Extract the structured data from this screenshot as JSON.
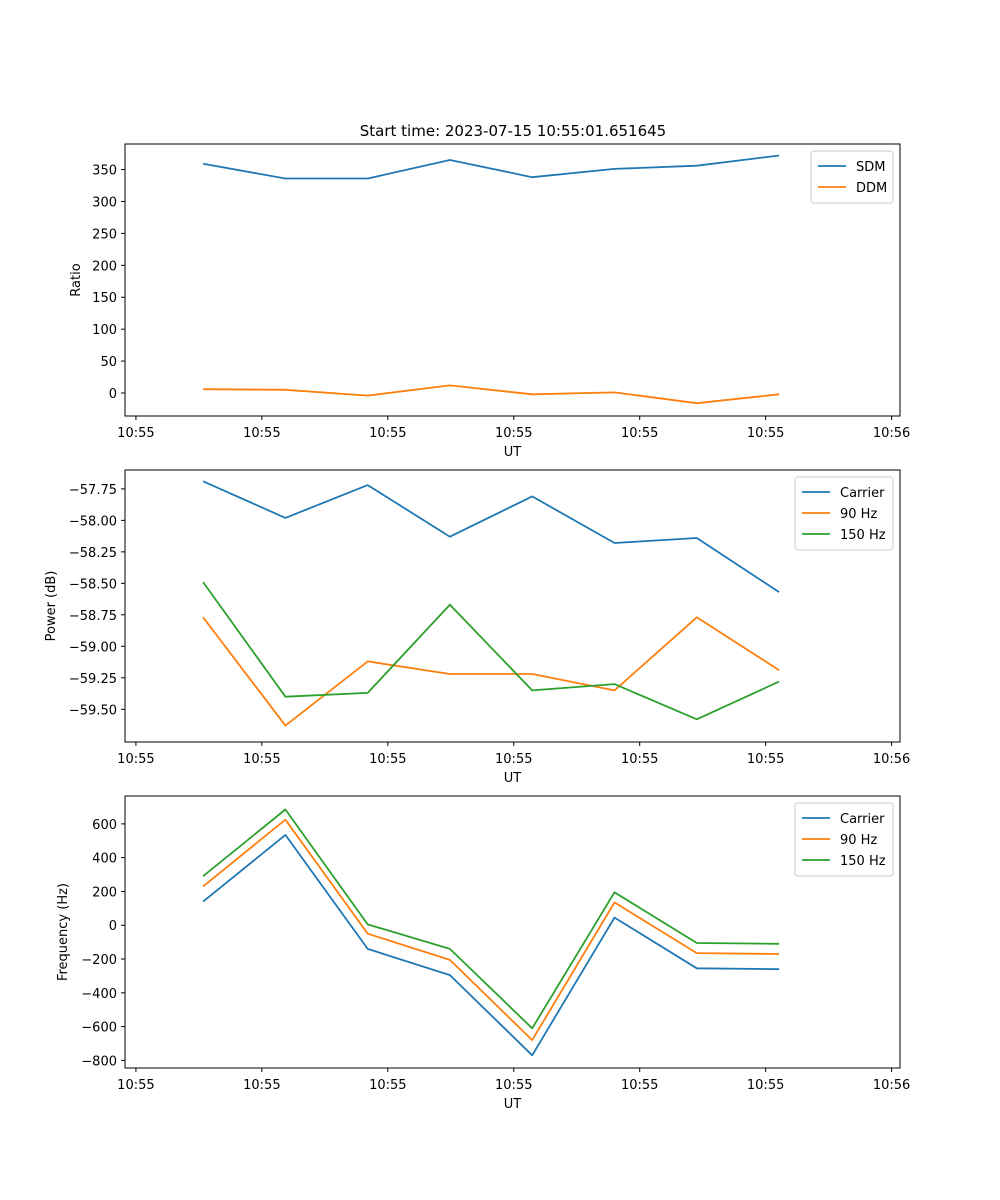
{
  "figure_title": "Start time: 2023-07-15 10:55:01.651645",
  "chart_data": [
    {
      "type": "line",
      "xlabel": "UT",
      "ylabel": "Ratio",
      "xlim": [
        -0.13,
        9.1
      ],
      "ylim": [
        -36,
        390
      ],
      "x": [
        0.8,
        1.78,
        2.76,
        3.74,
        4.72,
        5.7,
        6.68,
        7.66
      ],
      "x_ticks": [
        0,
        1.5,
        3,
        4.5,
        6,
        7.5,
        9
      ],
      "x_tick_labels": [
        "10:55",
        "10:55",
        "10:55",
        "10:55",
        "10:55",
        "10:55",
        "10:56"
      ],
      "y_ticks": [
        0,
        50,
        100,
        150,
        200,
        250,
        300,
        350
      ],
      "y_tick_labels": [
        "0",
        "50",
        "100",
        "150",
        "200",
        "250",
        "300",
        "350"
      ],
      "series": [
        {
          "name": "SDM",
          "color": "#1f77b4",
          "values": [
            359,
            336,
            336,
            365,
            338,
            351,
            356,
            372
          ]
        },
        {
          "name": "DDM",
          "color": "#ff7f0e",
          "values": [
            6,
            5,
            -4,
            12,
            -2,
            1,
            -16,
            -2
          ]
        }
      ]
    },
    {
      "type": "line",
      "xlabel": "UT",
      "ylabel": "Power (dB)",
      "xlim": [
        -0.13,
        9.1
      ],
      "ylim": [
        -59.76,
        -57.6
      ],
      "x": [
        0.8,
        1.78,
        2.76,
        3.74,
        4.72,
        5.7,
        6.68,
        7.66
      ],
      "x_ticks": [
        0,
        1.5,
        3,
        4.5,
        6,
        7.5,
        9
      ],
      "x_tick_labels": [
        "10:55",
        "10:55",
        "10:55",
        "10:55",
        "10:55",
        "10:55",
        "10:56"
      ],
      "y_ticks": [
        -59.5,
        -59.25,
        -59.0,
        -58.75,
        -58.5,
        -58.25,
        -58.0,
        -57.75
      ],
      "y_tick_labels": [
        "−59.50",
        "−59.25",
        "−59.00",
        "−58.75",
        "−58.50",
        "−58.25",
        "−58.00",
        "−57.75"
      ],
      "series": [
        {
          "name": "Carrier",
          "color": "#1f77b4",
          "values": [
            -57.69,
            -57.98,
            -57.72,
            -58.13,
            -57.81,
            -58.18,
            -58.14,
            -58.57
          ]
        },
        {
          "name": "90 Hz",
          "color": "#ff7f0e",
          "values": [
            -58.77,
            -59.63,
            -59.12,
            -59.22,
            -59.22,
            -59.35,
            -58.77,
            -59.19
          ]
        },
        {
          "name": "150 Hz",
          "color": "#2ca02c",
          "values": [
            -58.49,
            -59.4,
            -59.37,
            -58.67,
            -59.35,
            -59.3,
            -59.58,
            -59.28
          ]
        }
      ]
    },
    {
      "type": "line",
      "xlabel": "UT",
      "ylabel": "Frequency (Hz)",
      "xlim": [
        -0.13,
        9.1
      ],
      "ylim": [
        -845,
        765
      ],
      "x": [
        0.8,
        1.78,
        2.76,
        3.74,
        4.72,
        5.7,
        6.68,
        7.66
      ],
      "x_ticks": [
        0,
        1.5,
        3,
        4.5,
        6,
        7.5,
        9
      ],
      "x_tick_labels": [
        "10:55",
        "10:55",
        "10:55",
        "10:55",
        "10:55",
        "10:55",
        "10:56"
      ],
      "y_ticks": [
        -800,
        -600,
        -400,
        -200,
        0,
        200,
        400,
        600
      ],
      "y_tick_labels": [
        "−800",
        "−600",
        "−400",
        "−200",
        "0",
        "200",
        "400",
        "600"
      ],
      "series": [
        {
          "name": "Carrier",
          "color": "#1f77b4",
          "values": [
            140,
            535,
            -140,
            -295,
            -770,
            45,
            -255,
            -260
          ]
        },
        {
          "name": "90 Hz",
          "color": "#ff7f0e",
          "values": [
            230,
            625,
            -50,
            -205,
            -680,
            135,
            -165,
            -170
          ]
        },
        {
          "name": "150 Hz",
          "color": "#2ca02c",
          "values": [
            290,
            685,
            5,
            -140,
            -610,
            195,
            -105,
            -110
          ]
        }
      ]
    }
  ]
}
